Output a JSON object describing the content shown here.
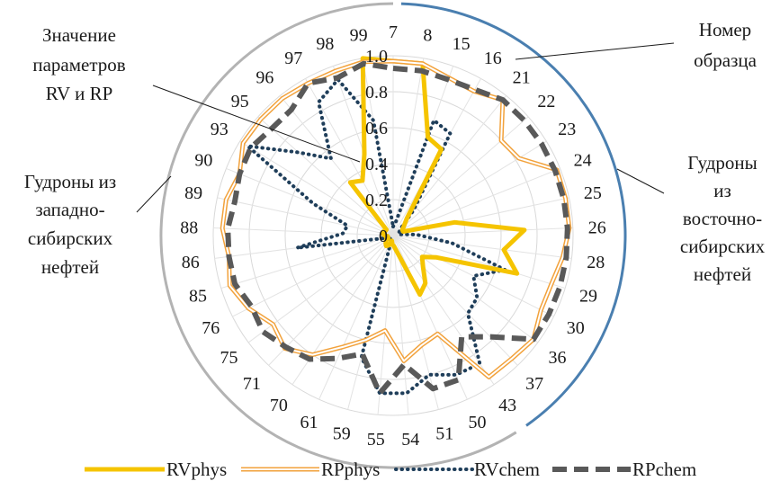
{
  "chart_data": {
    "type": "radar",
    "title": "",
    "rlim": [
      0,
      1.0
    ],
    "r_ticks": [
      "0",
      "0.2",
      "0.4",
      "0.6",
      "0.8",
      "1.0"
    ],
    "grid": true,
    "legend_position": "bottom",
    "categories": [
      "7",
      "8",
      "15",
      "16",
      "21",
      "22",
      "23",
      "24",
      "25",
      "26",
      "28",
      "29",
      "30",
      "36",
      "37",
      "43",
      "50",
      "51",
      "54",
      "55",
      "59",
      "61",
      "70",
      "71",
      "75",
      "76",
      "85",
      "86",
      "88",
      "89",
      "90",
      "93",
      "95",
      "96",
      "97",
      "98",
      "99"
    ],
    "series": [
      {
        "name": "RVphys",
        "color": "#f5c400",
        "values": [
          0.97,
          0.97,
          0.58,
          0.55,
          0.12,
          0.08,
          0.06,
          0.06,
          0.35,
          0.73,
          0.62,
          0.72,
          0.27,
          0.2,
          0.24,
          0.32,
          0.36,
          0.1,
          0.06,
          0.05,
          0.03,
          0.06,
          0.07,
          0.06,
          0.05,
          0.03,
          0.04,
          0.03,
          0.05,
          0.06,
          0.06,
          0.05,
          0.05,
          0.38,
          0.35,
          0.48,
          1.0
        ]
      },
      {
        "name": "RPphys",
        "color": "#f2a23c",
        "values": [
          0.97,
          0.97,
          0.93,
          0.92,
          0.97,
          0.8,
          0.82,
          0.98,
          0.98,
          0.98,
          0.95,
          0.92,
          0.92,
          0.97,
          0.95,
          0.95,
          0.6,
          0.63,
          0.7,
          0.53,
          0.6,
          0.68,
          0.8,
          0.87,
          0.83,
          0.9,
          0.95,
          0.92,
          0.95,
          0.95,
          0.92,
          0.98,
          0.98,
          0.98,
          0.97,
          0.97,
          0.98
        ]
      },
      {
        "name": "RVchem",
        "color": "#1f3e5a",
        "values": [
          0.05,
          0.07,
          0.68,
          0.65,
          0.18,
          0.05,
          0.04,
          0.03,
          0.03,
          0.13,
          0.33,
          0.65,
          0.5,
          0.58,
          0.6,
          0.86,
          0.85,
          0.8,
          0.88,
          0.88,
          0.7,
          0.02,
          0.02,
          0.03,
          0.05,
          0.02,
          0.05,
          0.54,
          0.28,
          0.26,
          0.48,
          0.95,
          0.7,
          0.55,
          0.85,
          0.92,
          0.65
        ]
      },
      {
        "name": "RPchem",
        "color": "#595959",
        "values": [
          0.93,
          0.93,
          0.92,
          0.93,
          0.97,
          0.97,
          0.97,
          0.97,
          0.97,
          0.97,
          0.97,
          0.97,
          0.97,
          0.97,
          0.78,
          0.68,
          0.88,
          0.88,
          0.72,
          0.88,
          0.68,
          0.75,
          0.83,
          0.86,
          0.9,
          0.88,
          0.92,
          0.92,
          0.92,
          0.9,
          0.92,
          0.93,
          0.9,
          0.9,
          0.97,
          0.93,
          0.97
        ]
      }
    ],
    "groups": [
      {
        "label": "Гудроны из восточно-сибирских нефтей",
        "color": "#4a7fb0",
        "from": "7",
        "to": "37"
      },
      {
        "label": "Гудроны из западно-сибирских нефтей",
        "color": "#b3b3b3",
        "from": "43",
        "to": "99"
      }
    ],
    "annotations": {
      "values_label": [
        "Значение",
        "параметров",
        "RV и RP"
      ],
      "sample_label": [
        "Номер",
        "образца"
      ],
      "east_group_label": [
        "Гудроны",
        "из",
        "восточно-",
        "сибирских",
        "нефтей"
      ],
      "west_group_label": [
        "Гудроны из",
        "западно-",
        "сибирских",
        "нефтей"
      ]
    }
  }
}
